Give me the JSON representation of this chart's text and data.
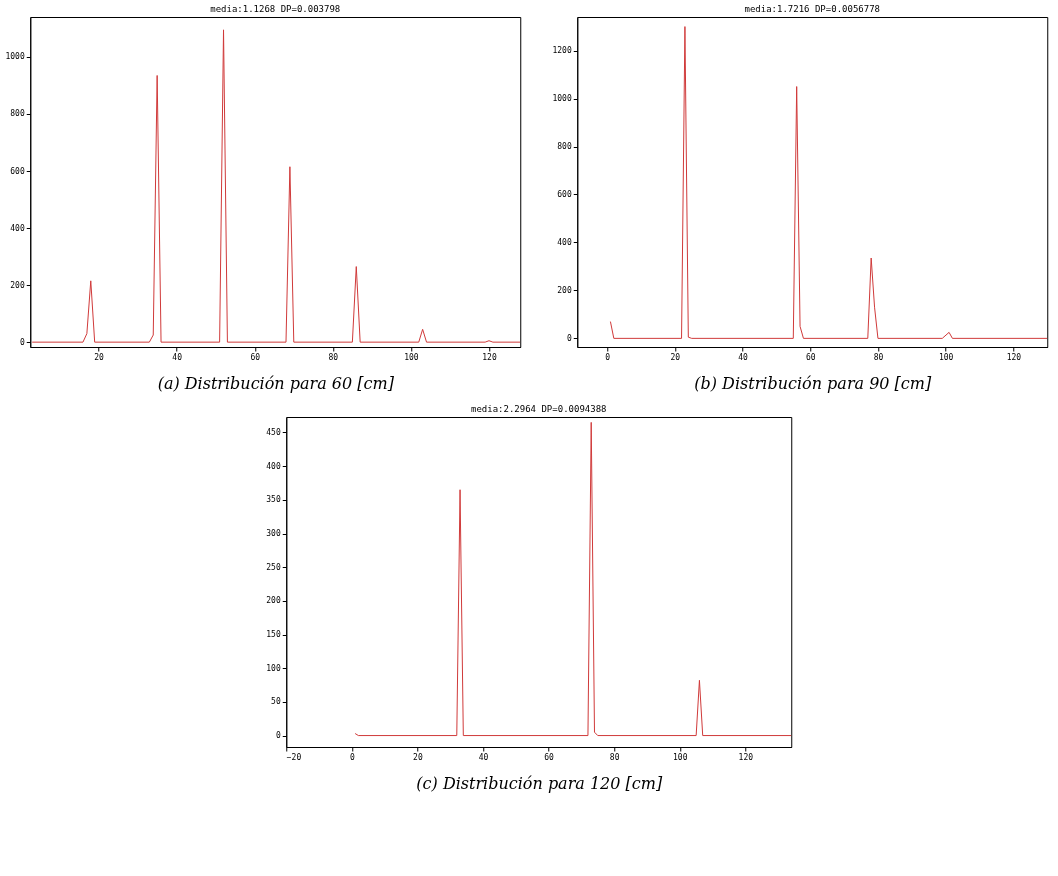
{
  "chart_data": [
    {
      "type": "line",
      "title": "media:1.1268  DP=0.003798",
      "annotations": [
        "(a) Distribución para 60 [cm]"
      ],
      "xlim": [
        2.5,
        128
      ],
      "xticks": [
        20,
        40,
        60,
        80,
        100,
        120
      ],
      "ylim": [
        -17,
        1140
      ],
      "yticks": [
        0,
        200,
        400,
        600,
        800,
        1000
      ],
      "x": [
        3,
        16,
        17,
        18,
        19,
        33,
        34,
        35,
        36,
        51,
        52,
        53,
        68,
        69,
        70,
        85,
        86,
        87,
        102,
        103,
        104,
        119,
        120,
        121,
        128
      ],
      "series": [
        {
          "color": "#d03a3a",
          "values": [
            0,
            0,
            30,
            215,
            0,
            0,
            25,
            935,
            0,
            0,
            1095,
            0,
            0,
            615,
            0,
            0,
            265,
            0,
            0,
            45,
            0,
            0,
            5,
            0,
            0
          ]
        }
      ]
    },
    {
      "type": "line",
      "title": "media:1.7216  DP=0.0056778",
      "annotations": [
        "(b) Distribución para 90 [cm]"
      ],
      "xlim": [
        -8.8,
        130
      ],
      "xticks": [
        0,
        20,
        40,
        60,
        80,
        100,
        120
      ],
      "ylim": [
        -36,
        1340
      ],
      "yticks": [
        0,
        200,
        400,
        600,
        800,
        1000,
        1200
      ],
      "x": [
        1,
        2,
        22,
        23,
        24,
        25,
        55,
        56,
        57,
        58,
        77,
        78,
        79,
        80,
        99,
        101,
        102,
        130
      ],
      "series": [
        {
          "color": "#d03a3a",
          "values": [
            70,
            0,
            0,
            1300,
            5,
            0,
            0,
            1050,
            50,
            0,
            0,
            335,
            130,
            0,
            0,
            25,
            0,
            0
          ]
        }
      ]
    },
    {
      "type": "line",
      "title": "media:2.2964  DP=0.0094388",
      "annotations": [
        "(c) Distribución para 120 [cm]"
      ],
      "xlim": [
        -20,
        134
      ],
      "xticks": [
        -20,
        0,
        20,
        40,
        60,
        80,
        100,
        120
      ],
      "ylim": [
        -17,
        473
      ],
      "yticks": [
        0,
        50,
        100,
        150,
        200,
        250,
        300,
        350,
        400,
        450
      ],
      "x": [
        1,
        2,
        32,
        33,
        34,
        72,
        73,
        74,
        75,
        105,
        106,
        107,
        134
      ],
      "series": [
        {
          "color": "#d03a3a",
          "values": [
            3,
            0,
            0,
            365,
            0,
            0,
            465,
            5,
            0,
            0,
            82,
            0,
            0
          ]
        }
      ]
    }
  ]
}
